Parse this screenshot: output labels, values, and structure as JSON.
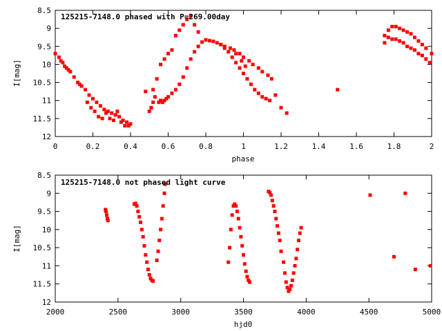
{
  "chart_data": [
    {
      "type": "scatter",
      "title": "125215-7148.0 phased with P=269.00day",
      "xlabel": "phase",
      "ylabel": "I[mag]",
      "xlim": [
        0,
        2
      ],
      "ylim": [
        12,
        8.5
      ],
      "y_inverted": true,
      "xticks": [
        "0",
        "0.2",
        "0.4",
        "0.6",
        "0.8",
        "1",
        "1.2",
        "1.4",
        "1.6",
        "1.8",
        "2"
      ],
      "yticks": [
        "8.5",
        "9",
        "9.5",
        "10",
        "10.5",
        "11",
        "11.5",
        "12"
      ],
      "marker_color": "#ff0000",
      "grid": false,
      "series": [
        {
          "x": [
            0.0,
            0.02,
            0.04,
            0.06,
            0.08,
            0.1,
            0.12,
            0.14,
            0.16,
            0.18,
            0.2,
            0.22,
            0.24,
            0.26,
            0.28,
            0.3,
            0.32,
            0.34,
            0.36,
            0.38,
            0.4,
            0.03,
            0.05,
            0.07,
            0.13,
            0.17,
            0.19,
            0.21,
            0.23,
            0.25,
            0.27,
            0.29,
            0.31,
            0.33,
            0.35,
            0.37,
            0.39,
            0.48,
            0.5,
            0.51,
            0.52,
            0.53,
            0.55,
            0.56,
            0.57,
            0.58,
            0.59,
            0.6,
            0.62,
            0.64,
            0.66,
            0.68,
            0.7,
            0.72,
            0.74,
            0.76,
            0.78,
            0.8,
            0.82,
            0.84,
            0.86,
            0.88,
            0.9,
            0.92,
            0.94,
            0.96,
            0.98,
            1.0,
            1.02,
            1.04,
            1.06,
            1.08,
            1.1,
            1.12,
            1.14,
            0.52,
            0.54,
            0.56,
            0.58,
            0.6,
            0.62,
            0.64,
            0.66,
            0.68,
            0.7,
            0.72,
            0.74,
            0.76,
            0.88,
            0.9,
            0.93,
            0.95,
            0.98,
            1.0,
            1.03,
            1.05,
            1.08,
            1.1,
            1.13,
            1.15,
            0.96,
            0.99,
            1.01,
            1.17,
            1.2,
            1.23,
            1.5,
            1.75,
            1.77,
            1.79,
            1.81,
            1.83,
            1.85,
            1.87,
            1.89,
            1.91,
            1.93,
            1.95,
            1.97,
            1.99,
            1.75,
            1.77,
            1.79,
            1.81,
            1.83,
            1.85,
            1.87,
            1.89,
            1.91,
            1.93,
            1.95,
            1.97,
            2.0
          ],
          "y": [
            9.7,
            9.8,
            9.95,
            10.1,
            10.2,
            10.35,
            10.5,
            10.6,
            10.7,
            10.85,
            10.95,
            11.05,
            11.15,
            11.25,
            11.3,
            11.35,
            11.4,
            11.45,
            11.55,
            11.6,
            11.65,
            9.9,
            10.05,
            10.15,
            10.55,
            11.05,
            11.2,
            11.3,
            11.45,
            11.5,
            11.35,
            11.5,
            11.55,
            11.3,
            11.6,
            11.7,
            11.7,
            10.75,
            11.3,
            11.2,
            11.05,
            10.9,
            11.05,
            11.0,
            11.05,
            11.0,
            10.95,
            10.9,
            10.8,
            10.7,
            10.55,
            10.35,
            10.1,
            9.85,
            9.65,
            9.5,
            9.38,
            9.32,
            9.34,
            9.36,
            9.4,
            9.45,
            9.55,
            9.65,
            9.8,
            9.95,
            10.1,
            10.25,
            10.4,
            10.55,
            10.7,
            10.8,
            10.9,
            10.95,
            11.0,
            10.7,
            10.4,
            10.0,
            9.85,
            9.7,
            9.6,
            9.2,
            9.05,
            8.9,
            8.75,
            8.65,
            8.9,
            9.1,
            9.45,
            9.5,
            9.55,
            9.6,
            9.7,
            9.8,
            9.9,
            10.0,
            10.1,
            10.2,
            10.3,
            10.4,
            9.7,
            9.9,
            10.05,
            10.85,
            11.2,
            11.35,
            10.7,
            9.4,
            9.25,
            9.3,
            9.3,
            9.35,
            9.4,
            9.5,
            9.55,
            9.6,
            9.7,
            9.75,
            9.85,
            9.95,
            9.2,
            9.05,
            8.95,
            8.95,
            9.0,
            9.05,
            9.1,
            9.15,
            9.25,
            9.35,
            9.45,
            9.55,
            9.7
          ]
        }
      ]
    },
    {
      "type": "scatter",
      "title": "125215-7148.0 not phased light curve",
      "xlabel": "hjd0",
      "ylabel": "I[mag]",
      "xlim": [
        2000,
        5000
      ],
      "ylim": [
        12,
        8.5
      ],
      "y_inverted": true,
      "xticks": [
        "2000",
        "2500",
        "3000",
        "3500",
        "4000",
        "4500",
        "5000"
      ],
      "yticks": [
        "8.5",
        "9",
        "9.5",
        "10",
        "10.5",
        "11",
        "11.5",
        "12"
      ],
      "marker_color": "#ff0000",
      "grid": false,
      "series": [
        {
          "x": [
            2400,
            2405,
            2410,
            2415,
            2420,
            2630,
            2640,
            2650,
            2660,
            2670,
            2680,
            2690,
            2700,
            2710,
            2720,
            2730,
            2740,
            2750,
            2760,
            2770,
            2780,
            2810,
            2820,
            2830,
            2840,
            2850,
            2860,
            2870,
            2875,
            3380,
            3390,
            3400,
            3410,
            3420,
            3430,
            3440,
            3450,
            3460,
            3470,
            3480,
            3490,
            3500,
            3510,
            3520,
            3530,
            3540,
            3550,
            3700,
            3710,
            3720,
            3730,
            3740,
            3750,
            3760,
            3770,
            3780,
            3790,
            3800,
            3820,
            3830,
            3840,
            3850,
            3860,
            3870,
            3880,
            3890,
            3900,
            3910,
            3920,
            3930,
            3940,
            3950,
            3960,
            4510,
            4700,
            4790,
            4870,
            4990
          ],
          "y": [
            9.45,
            9.5,
            9.6,
            9.7,
            9.75,
            9.3,
            9.28,
            9.35,
            9.5,
            9.65,
            9.8,
            10.0,
            10.2,
            10.45,
            10.7,
            10.9,
            11.1,
            11.25,
            11.35,
            11.4,
            11.42,
            10.85,
            10.6,
            10.3,
            10.0,
            9.7,
            9.35,
            9.0,
            8.75,
            10.9,
            10.5,
            10.0,
            9.6,
            9.35,
            9.3,
            9.35,
            9.5,
            9.7,
            9.95,
            10.2,
            10.45,
            10.7,
            10.95,
            11.15,
            11.3,
            11.4,
            11.45,
            8.95,
            8.98,
            9.05,
            9.2,
            9.35,
            9.5,
            9.7,
            9.9,
            10.1,
            10.3,
            10.6,
            10.9,
            11.2,
            11.45,
            11.6,
            11.7,
            11.65,
            11.55,
            11.4,
            11.2,
            11.0,
            10.8,
            10.55,
            10.3,
            10.1,
            9.95,
            9.05,
            10.75,
            9.0,
            11.1,
            11.0
          ]
        }
      ]
    }
  ]
}
